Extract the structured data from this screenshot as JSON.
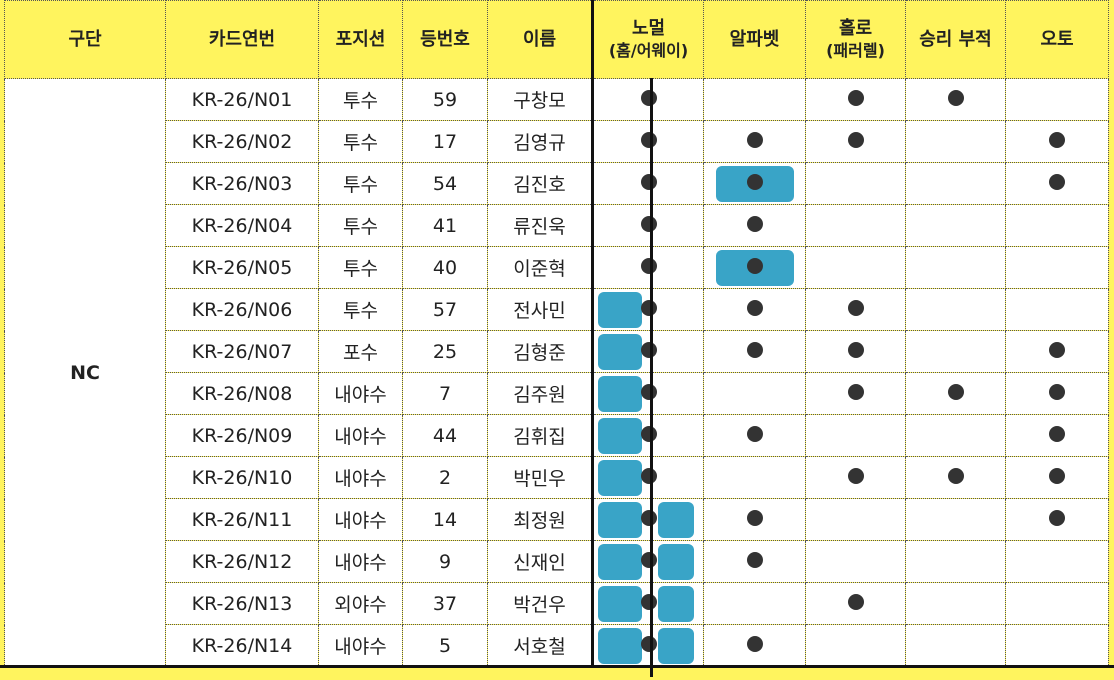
{
  "table": {
    "columns": [
      {
        "text": "구단"
      },
      {
        "text": "카드연번"
      },
      {
        "text": "포지션"
      },
      {
        "text": "등번호"
      },
      {
        "text": "이름"
      },
      {
        "text": "노멀",
        "sub": "(홈/어웨이)"
      },
      {
        "text": "알파벳"
      },
      {
        "text": "홀로",
        "sub": "(패러렐)"
      },
      {
        "text": "승리 부적"
      },
      {
        "text": "오토"
      }
    ],
    "group": "NC",
    "rows": [
      {
        "card": "KR-26/N01",
        "position": "투수",
        "number": "59",
        "name": "구창모",
        "marks": [
          true,
          false,
          true,
          true,
          false
        ],
        "highlight": [
          null,
          null,
          null,
          null,
          null
        ]
      },
      {
        "card": "KR-26/N02",
        "position": "투수",
        "number": "17",
        "name": "김영규",
        "marks": [
          true,
          true,
          true,
          false,
          true
        ],
        "highlight": [
          null,
          null,
          null,
          null,
          null
        ]
      },
      {
        "card": "KR-26/N03",
        "position": "투수",
        "number": "54",
        "name": "김진호",
        "marks": [
          true,
          true,
          false,
          false,
          true
        ],
        "highlight": [
          null,
          "center",
          null,
          null,
          null
        ]
      },
      {
        "card": "KR-26/N04",
        "position": "투수",
        "number": "41",
        "name": "류진욱",
        "marks": [
          true,
          true,
          false,
          false,
          false
        ],
        "highlight": [
          null,
          null,
          null,
          null,
          null
        ]
      },
      {
        "card": "KR-26/N05",
        "position": "투수",
        "number": "40",
        "name": "이준혁",
        "marks": [
          true,
          true,
          false,
          false,
          false
        ],
        "highlight": [
          null,
          "center",
          null,
          null,
          null
        ]
      },
      {
        "card": "KR-26/N06",
        "position": "투수",
        "number": "57",
        "name": "전사민",
        "marks": [
          true,
          true,
          true,
          false,
          false
        ],
        "highlight": [
          "left",
          null,
          null,
          null,
          null
        ]
      },
      {
        "card": "KR-26/N07",
        "position": "포수",
        "number": "25",
        "name": "김형준",
        "marks": [
          true,
          true,
          true,
          false,
          true
        ],
        "highlight": [
          "left",
          null,
          null,
          null,
          null
        ]
      },
      {
        "card": "KR-26/N08",
        "position": "내야수",
        "number": "7",
        "name": "김주원",
        "marks": [
          true,
          false,
          true,
          true,
          true
        ],
        "highlight": [
          "left",
          null,
          null,
          null,
          null
        ]
      },
      {
        "card": "KR-26/N09",
        "position": "내야수",
        "number": "44",
        "name": "김휘집",
        "marks": [
          true,
          true,
          false,
          false,
          true
        ],
        "highlight": [
          "left",
          null,
          null,
          null,
          null
        ]
      },
      {
        "card": "KR-26/N10",
        "position": "내야수",
        "number": "2",
        "name": "박민우",
        "marks": [
          true,
          false,
          true,
          true,
          true
        ],
        "highlight": [
          "left",
          null,
          null,
          null,
          null
        ]
      },
      {
        "card": "KR-26/N11",
        "position": "내야수",
        "number": "14",
        "name": "최정원",
        "marks": [
          true,
          true,
          false,
          false,
          true
        ],
        "highlight": [
          "both",
          null,
          null,
          null,
          null
        ]
      },
      {
        "card": "KR-26/N12",
        "position": "내야수",
        "number": "9",
        "name": "신재인",
        "marks": [
          true,
          true,
          false,
          false,
          false
        ],
        "highlight": [
          "both",
          null,
          null,
          null,
          null
        ]
      },
      {
        "card": "KR-26/N13",
        "position": "외야수",
        "number": "37",
        "name": "박건우",
        "marks": [
          true,
          false,
          true,
          false,
          false
        ],
        "highlight": [
          "both",
          null,
          null,
          null,
          null
        ]
      },
      {
        "card": "KR-26/N14",
        "position": "내야수",
        "number": "5",
        "name": "서호철",
        "marks": [
          true,
          true,
          false,
          false,
          false
        ],
        "highlight": [
          "both",
          null,
          null,
          null,
          null
        ]
      }
    ]
  }
}
